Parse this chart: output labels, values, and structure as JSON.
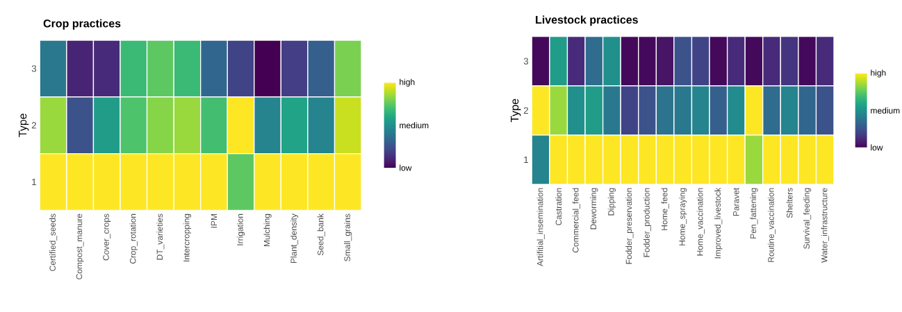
{
  "chart_data": [
    {
      "type": "heatmap",
      "title": "Crop practices",
      "ylabel": "Type",
      "categories": [
        "Certified_seeds",
        "Compost_manure",
        "Cover_crops",
        "Crop_rotation",
        "DT_varieties",
        "Intercropping",
        "IPM",
        "Irrigation",
        "Mulching",
        "Plant_density",
        "Seed_bank",
        "Small_grains"
      ],
      "y_categories": [
        "3",
        "2",
        "1"
      ],
      "cells": [
        [
          0.4,
          0.1,
          0.12,
          0.68,
          0.75,
          0.68,
          0.33,
          0.2,
          0.0,
          0.18,
          0.3,
          0.8
        ],
        [
          0.85,
          0.25,
          0.55,
          0.72,
          0.82,
          0.85,
          0.7,
          1.0,
          0.45,
          0.58,
          0.45,
          0.92
        ],
        [
          1.0,
          1.0,
          1.0,
          1.0,
          1.0,
          1.0,
          1.0,
          0.75,
          1.0,
          1.0,
          1.0,
          1.0
        ]
      ],
      "clim": [
        0,
        1
      ],
      "cticks": [
        {
          "value": 0,
          "label": "low"
        },
        {
          "value": 0.5,
          "label": "medium"
        },
        {
          "value": 1,
          "label": "high"
        }
      ]
    },
    {
      "type": "heatmap",
      "title": "Livestock practices",
      "ylabel": "Type",
      "categories": [
        "Artifitial_insemination",
        "Castration",
        "Commercial_feed",
        "Deworming",
        "Dipping",
        "Fodder_preservation",
        "Fodder_production",
        "Home_feed",
        "Home_spraying",
        "Home_vaccination",
        "Improved_livestock",
        "Paravet",
        "Pen_fattening",
        "Routine_vaccination",
        "Shelters",
        "Survival_feeding",
        "Water_infrastructure"
      ],
      "y_categories": [
        "3",
        "2",
        "1"
      ],
      "cells": [
        [
          0.02,
          0.55,
          0.12,
          0.35,
          0.5,
          0.02,
          0.02,
          0.05,
          0.25,
          0.2,
          0.02,
          0.12,
          0.02,
          0.12,
          0.15,
          0.02,
          0.12
        ],
        [
          1.0,
          0.85,
          0.5,
          0.55,
          0.4,
          0.2,
          0.25,
          0.38,
          0.4,
          0.45,
          0.3,
          0.48,
          1.0,
          0.35,
          0.45,
          0.33,
          0.25
        ],
        [
          0.45,
          1.0,
          1.0,
          1.0,
          1.0,
          1.0,
          1.0,
          1.0,
          1.0,
          1.0,
          1.0,
          1.0,
          0.85,
          1.0,
          1.0,
          1.0,
          1.0
        ]
      ],
      "clim": [
        0,
        1
      ],
      "cticks": [
        {
          "value": 0,
          "label": "low"
        },
        {
          "value": 0.5,
          "label": "medium"
        },
        {
          "value": 1,
          "label": "high"
        }
      ]
    }
  ]
}
